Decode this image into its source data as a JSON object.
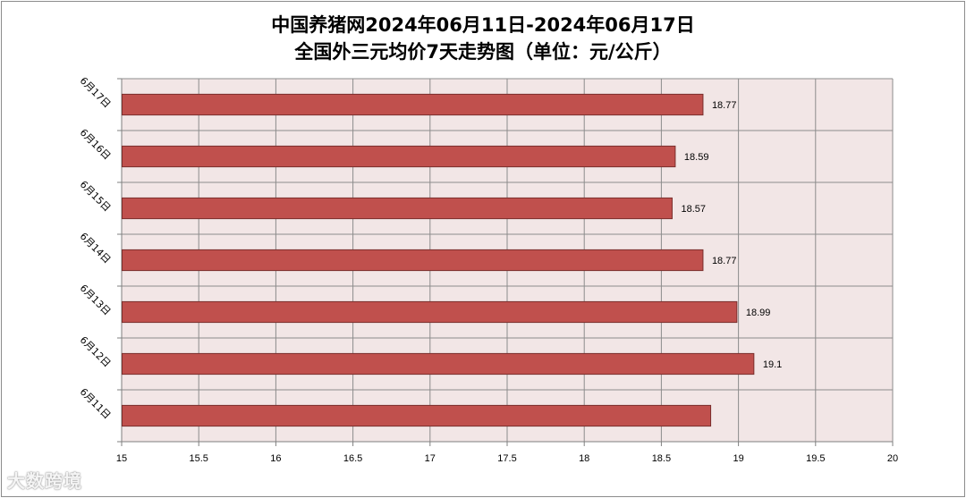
{
  "chart_data": {
    "type": "bar",
    "orientation": "horizontal",
    "title_line1": "中国养猪网2024年06月11日-2024年06月17日",
    "title_line2": "全国外三元均价7天走势图（单位：元/公斤）",
    "categories": [
      "6月17日",
      "6月16日",
      "6月15日",
      "6月14日",
      "6月13日",
      "6月12日",
      "6月11日"
    ],
    "values": [
      18.77,
      18.59,
      18.57,
      18.77,
      18.99,
      19.1,
      18.82
    ],
    "data_labels": [
      "18.77",
      "18.59",
      "18.57",
      "18.77",
      "18.99",
      "19.1",
      ""
    ],
    "x_ticks": [
      "15",
      "15.5",
      "16",
      "16.5",
      "17",
      "17.5",
      "18",
      "18.5",
      "19",
      "19.5",
      "20"
    ],
    "xlim": [
      15,
      20
    ],
    "grid": true,
    "bar_color": "#c0504d",
    "plot_bg": "#f2e6e6"
  },
  "watermark": "大数跨境"
}
